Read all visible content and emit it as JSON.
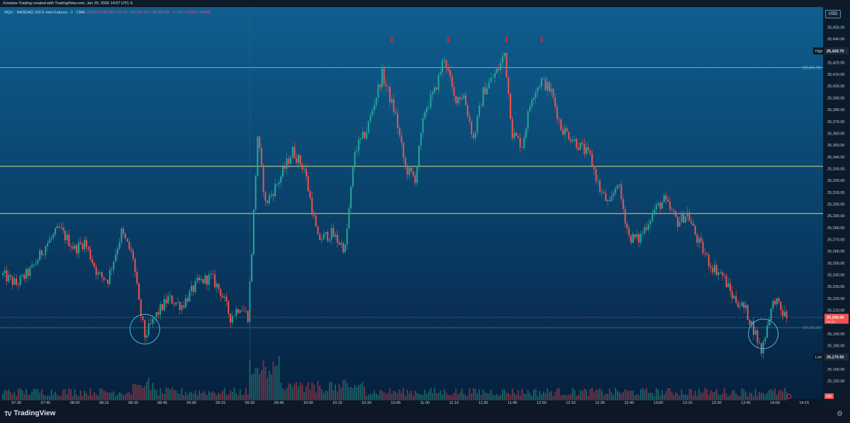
{
  "header": {
    "caption": "Xclusive-Trading created with TradingView.com, Jan 20, 2026 14:07 UTC-5",
    "symbol": "NQ1! · NASDAQ 100 E-mini Futures · 1 · CME",
    "ohlc": "O25,212.00 H25,212.25 L25,201.25 C25,204.00 −7.75 (−0.03%) Vol460"
  },
  "price_axis": {
    "currency": "USD",
    "ticks": [
      "25,450.00",
      "25,440.00",
      "25,430.00",
      "25,420.00",
      "25,410.00",
      "25,400.00",
      "25,390.00",
      "25,380.00",
      "25,370.00",
      "25,360.00",
      "25,350.00",
      "25,340.00",
      "25,330.00",
      "25,320.00",
      "25,310.00",
      "25,300.00",
      "25,290.00",
      "25,280.00",
      "25,270.00",
      "25,260.00",
      "25,250.00",
      "25,240.00",
      "25,230.00",
      "25,220.00",
      "25,210.00",
      "25,200.00",
      "25,190.00",
      "25,180.00",
      "25,170.00",
      "25,160.00",
      "25,150.00"
    ],
    "high_label": "High",
    "high_value": "25,429.75",
    "last_value": "25,204.00",
    "last_countdown": "00:23",
    "low_label": "Low",
    "low_value": "25,170.50",
    "volume_value": "460",
    "level_label_upper": "(25,415.75)",
    "level_label_lower": "(25,195.25)"
  },
  "time_axis": {
    "ticks": [
      "07:30",
      "07:45",
      "08:00",
      "08:15",
      "08:30",
      "08:45",
      "09:00",
      "09:15",
      "09:30",
      "09:45",
      "10:00",
      "10:15",
      "10:30",
      "10:45",
      "11:00",
      "11:15",
      "11:30",
      "11:45",
      "12:00",
      "12:15",
      "12:30",
      "12:45",
      "13:00",
      "13:15",
      "13:30",
      "13:45",
      "14:00",
      "14:15"
    ]
  },
  "brand": {
    "name": "TradingView",
    "logo_text": "TV"
  },
  "colors": {
    "up": "#26a69a",
    "down": "#ef5350",
    "resistance": "#4fb9dc",
    "yellow_level": "#d9d98a",
    "marker": "#e11d2a"
  },
  "chart_data": {
    "type": "candlestick",
    "title": "NQ1! · NASDAQ 100 E-mini Futures · 1 · CME",
    "interval": "1 minute",
    "x_range": [
      "07:23",
      "14:20"
    ],
    "ylim": [
      25145,
      25455
    ],
    "close_path_approx": [
      {
        "t": "07:23",
        "p": 25240
      },
      {
        "t": "07:30",
        "p": 25232
      },
      {
        "t": "07:38",
        "p": 25245
      },
      {
        "t": "07:45",
        "p": 25265
      },
      {
        "t": "07:52",
        "p": 25279
      },
      {
        "t": "08:00",
        "p": 25262
      },
      {
        "t": "08:05",
        "p": 25268
      },
      {
        "t": "08:12",
        "p": 25240
      },
      {
        "t": "08:17",
        "p": 25236
      },
      {
        "t": "08:24",
        "p": 25276
      },
      {
        "t": "08:30",
        "p": 25255
      },
      {
        "t": "08:33",
        "p": 25215
      },
      {
        "t": "08:36",
        "p": 25188
      },
      {
        "t": "08:42",
        "p": 25206
      },
      {
        "t": "08:48",
        "p": 25220
      },
      {
        "t": "08:55",
        "p": 25214
      },
      {
        "t": "09:03",
        "p": 25233
      },
      {
        "t": "09:10",
        "p": 25238
      },
      {
        "t": "09:15",
        "p": 25226
      },
      {
        "t": "09:20",
        "p": 25204
      },
      {
        "t": "09:25",
        "p": 25214
      },
      {
        "t": "09:29",
        "p": 25205
      },
      {
        "t": "09:31",
        "p": 25260
      },
      {
        "t": "09:34",
        "p": 25358
      },
      {
        "t": "09:38",
        "p": 25300
      },
      {
        "t": "09:45",
        "p": 25320
      },
      {
        "t": "09:52",
        "p": 25345
      },
      {
        "t": "09:58",
        "p": 25330
      },
      {
        "t": "10:05",
        "p": 25270
      },
      {
        "t": "10:12",
        "p": 25275
      },
      {
        "t": "10:19",
        "p": 25262
      },
      {
        "t": "10:24",
        "p": 25345
      },
      {
        "t": "10:30",
        "p": 25362
      },
      {
        "t": "10:38",
        "p": 25410
      },
      {
        "t": "10:45",
        "p": 25375
      },
      {
        "t": "10:50",
        "p": 25330
      },
      {
        "t": "10:55",
        "p": 25322
      },
      {
        "t": "11:00",
        "p": 25380
      },
      {
        "t": "11:05",
        "p": 25395
      },
      {
        "t": "11:10",
        "p": 25425
      },
      {
        "t": "11:15",
        "p": 25390
      },
      {
        "t": "11:20",
        "p": 25392
      },
      {
        "t": "11:25",
        "p": 25355
      },
      {
        "t": "11:30",
        "p": 25395
      },
      {
        "t": "11:38",
        "p": 25415
      },
      {
        "t": "11:41",
        "p": 25428
      },
      {
        "t": "11:45",
        "p": 25360
      },
      {
        "t": "11:50",
        "p": 25350
      },
      {
        "t": "11:55",
        "p": 25392
      },
      {
        "t": "12:00",
        "p": 25405
      },
      {
        "t": "12:05",
        "p": 25395
      },
      {
        "t": "12:10",
        "p": 25365
      },
      {
        "t": "12:18",
        "p": 25352
      },
      {
        "t": "12:25",
        "p": 25340
      },
      {
        "t": "12:30",
        "p": 25312
      },
      {
        "t": "12:35",
        "p": 25298
      },
      {
        "t": "12:39",
        "p": 25320
      },
      {
        "t": "12:45",
        "p": 25272
      },
      {
        "t": "12:50",
        "p": 25270
      },
      {
        "t": "12:58",
        "p": 25295
      },
      {
        "t": "13:03",
        "p": 25303
      },
      {
        "t": "13:10",
        "p": 25285
      },
      {
        "t": "13:15",
        "p": 25292
      },
      {
        "t": "13:20",
        "p": 25270
      },
      {
        "t": "13:27",
        "p": 25248
      },
      {
        "t": "13:33",
        "p": 25240
      },
      {
        "t": "13:38",
        "p": 25222
      },
      {
        "t": "13:45",
        "p": 25210
      },
      {
        "t": "13:50",
        "p": 25190
      },
      {
        "t": "13:53",
        "p": 25175
      },
      {
        "t": "13:57",
        "p": 25205
      },
      {
        "t": "14:00",
        "p": 25220
      },
      {
        "t": "14:03",
        "p": 25209
      },
      {
        "t": "14:06",
        "p": 25204
      }
    ],
    "horizontal_levels": [
      25415.75,
      25332,
      25292,
      25195.25
    ],
    "last_price": 25204.0,
    "session_high": 25429.75,
    "session_low": 25170.5,
    "markers": [
      "10:43",
      "11:12",
      "11:42",
      "12:00"
    ],
    "highlight_circles": [
      {
        "t": "08:36",
        "p": 25194
      },
      {
        "t": "13:54",
        "p": 25190
      }
    ],
    "grid": false
  }
}
